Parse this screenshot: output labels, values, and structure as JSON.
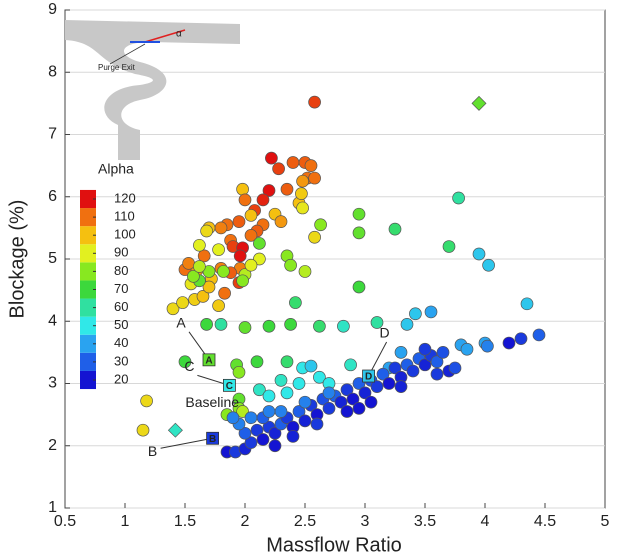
{
  "chart_data": {
    "type": "scatter",
    "xlabel": "Massflow Ratio",
    "ylabel": "Blockage (%)",
    "xlim": [
      0.5,
      5
    ],
    "xticks": [
      0.5,
      1,
      1.5,
      2,
      2.5,
      3,
      3.5,
      4,
      4.5,
      5
    ],
    "ylim": [
      1,
      9
    ],
    "yticks": [
      1,
      2,
      3,
      4,
      5,
      6,
      7,
      8,
      9
    ],
    "grid": true,
    "x": [
      2.22,
      2.28,
      2.4,
      2.5,
      2.52,
      2.58,
      2.48,
      2.35,
      2.2,
      2.15,
      2.08,
      1.98,
      2.0,
      2.25,
      2.3,
      2.15,
      2.1,
      1.95,
      1.85,
      1.8,
      1.88,
      2.05,
      1.9,
      1.98,
      1.96,
      1.96,
      1.88,
      1.8,
      1.66,
      1.5,
      1.6,
      1.72,
      1.83,
      1.95,
      1.53,
      1.7,
      1.62,
      1.68,
      1.78,
      2.05,
      2.45,
      2.47,
      2.58,
      2.48,
      2.55,
      2.58,
      2.12,
      2.0,
      2.05,
      1.4,
      1.48,
      1.58,
      1.65,
      1.78,
      1.55,
      1.7,
      1.62,
      1.7,
      1.82,
      1.57,
      1.62,
      1.98,
      2.12,
      2.35,
      2.5,
      2.38,
      2.63,
      2.95,
      2.95,
      3.25,
      3.7,
      3.78,
      2.95,
      2.42,
      1.8,
      1.68,
      2.0,
      2.2,
      2.38,
      2.62,
      2.82,
      3.1,
      1.5,
      1.93,
      1.95,
      2.1,
      2.35,
      1.95,
      1.85,
      1.95,
      1.18,
      1.15,
      1.98,
      3.95,
      4.03,
      4.35,
      3.42,
      3.55,
      3.35,
      2.48,
      2.55,
      2.62,
      2.88,
      2.7,
      2.3,
      2.35,
      2.45,
      2.12,
      2.2,
      3.8,
      3.85,
      4.0,
      4.02,
      3.3,
      3.2,
      1.85,
      1.92,
      2.0,
      2.05,
      2.0,
      2.1,
      2.15,
      2.2,
      2.25,
      2.3,
      2.35,
      2.4,
      2.45,
      2.5,
      2.55,
      2.6,
      2.65,
      2.7,
      2.75,
      2.8,
      2.85,
      2.9,
      2.95,
      3.0,
      3.05,
      3.1,
      3.15,
      3.2,
      3.25,
      3.3,
      3.35,
      3.4,
      3.45,
      3.5,
      3.55,
      3.6,
      3.65,
      3.7,
      3.5,
      4.2,
      4.3,
      4.45,
      3.05,
      2.85,
      2.25,
      1.95,
      2.05,
      2.3,
      2.4,
      2.6,
      2.95,
      3.3,
      3.6,
      3.75,
      2.15,
      2.5,
      1.9,
      2.7,
      2.2
    ],
    "values": [
      6.62,
      6.45,
      6.55,
      6.55,
      6.3,
      6.3,
      6.25,
      6.12,
      6.1,
      5.95,
      5.78,
      6.12,
      5.95,
      5.72,
      5.6,
      5.55,
      5.45,
      5.6,
      5.55,
      5.5,
      5.3,
      5.38,
      5.2,
      5.18,
      5.05,
      4.85,
      4.78,
      4.85,
      5.05,
      4.83,
      4.82,
      4.68,
      4.45,
      4.62,
      4.93,
      5.5,
      5.22,
      5.45,
      5.15,
      5.7,
      5.9,
      6.05,
      5.35,
      5.82,
      6.5,
      7.52,
      5.0,
      4.75,
      4.9,
      4.2,
      4.3,
      4.35,
      4.4,
      4.25,
      4.6,
      4.55,
      4.65,
      4.8,
      4.8,
      4.72,
      4.88,
      4.65,
      5.25,
      5.05,
      4.8,
      4.9,
      5.55,
      5.72,
      5.42,
      5.48,
      5.2,
      5.98,
      4.55,
      4.3,
      3.95,
      3.95,
      3.9,
      3.92,
      3.95,
      3.92,
      3.92,
      3.98,
      3.35,
      3.3,
      3.18,
      3.35,
      3.35,
      2.75,
      2.5,
      2.6,
      2.72,
      2.25,
      2.55,
      5.08,
      4.9,
      4.28,
      4.12,
      4.15,
      3.95,
      3.25,
      3.28,
      3.1,
      3.3,
      3.0,
      3.05,
      2.85,
      3.0,
      2.9,
      2.8,
      3.62,
      3.55,
      3.65,
      3.6,
      3.5,
      3.25,
      1.9,
      1.9,
      1.95,
      2.05,
      2.2,
      2.25,
      2.1,
      2.3,
      2.2,
      2.35,
      2.45,
      2.3,
      2.55,
      2.4,
      2.65,
      2.5,
      2.75,
      2.6,
      2.8,
      2.7,
      2.9,
      2.75,
      3.0,
      2.85,
      3.05,
      2.95,
      3.15,
      3.0,
      3.25,
      3.1,
      3.3,
      3.2,
      3.4,
      3.3,
      3.45,
      3.35,
      3.5,
      3.2,
      3.55,
      3.65,
      3.72,
      3.78,
      2.7,
      2.55,
      2.0,
      2.35,
      2.45,
      2.55,
      2.15,
      2.35,
      2.6,
      2.95,
      3.15,
      3.25,
      2.45,
      2.7,
      2.45,
      2.85,
      2.55
    ],
    "alpha": [
      120,
      115,
      112,
      112,
      110,
      110,
      105,
      112,
      120,
      118,
      115,
      100,
      110,
      100,
      105,
      110,
      112,
      112,
      110,
      108,
      110,
      110,
      115,
      120,
      122,
      108,
      112,
      108,
      110,
      110,
      105,
      100,
      110,
      115,
      108,
      100,
      90,
      95,
      90,
      100,
      100,
      98,
      95,
      92,
      110,
      115,
      90,
      85,
      90,
      95,
      95,
      97,
      100,
      98,
      92,
      100,
      75,
      80,
      80,
      80,
      85,
      80,
      75,
      80,
      85,
      80,
      80,
      75,
      75,
      65,
      65,
      60,
      70,
      65,
      60,
      70,
      75,
      70,
      70,
      65,
      55,
      60,
      70,
      75,
      80,
      70,
      65,
      75,
      80,
      80,
      95,
      95,
      85,
      45,
      45,
      45,
      45,
      40,
      45,
      50,
      45,
      50,
      55,
      50,
      55,
      50,
      50,
      55,
      50,
      40,
      40,
      40,
      35,
      40,
      40,
      20,
      25,
      22,
      25,
      30,
      25,
      20,
      25,
      22,
      30,
      25,
      20,
      30,
      22,
      25,
      20,
      28,
      25,
      30,
      22,
      25,
      20,
      30,
      22,
      28,
      25,
      30,
      20,
      25,
      22,
      30,
      25,
      30,
      22,
      25,
      30,
      28,
      22,
      25,
      20,
      25,
      30,
      20,
      20,
      20,
      35,
      35,
      35,
      22,
      25,
      20,
      22,
      25,
      28,
      30,
      35,
      35,
      35,
      35
    ],
    "colorbar": {
      "title": "Alpha",
      "ticks": [
        20,
        30,
        40,
        50,
        60,
        70,
        80,
        90,
        100,
        110,
        120
      ]
    },
    "colormap": [
      {
        "value": 20,
        "color": "#1414d2"
      },
      {
        "value": 30,
        "color": "#1f5fe8"
      },
      {
        "value": 40,
        "color": "#2aa3f0"
      },
      {
        "value": 50,
        "color": "#30e8e8"
      },
      {
        "value": 60,
        "color": "#30e0a0"
      },
      {
        "value": 70,
        "color": "#3cd83c"
      },
      {
        "value": 80,
        "color": "#88e820"
      },
      {
        "value": 90,
        "color": "#e2f020"
      },
      {
        "value": 100,
        "color": "#f5c010"
      },
      {
        "value": 110,
        "color": "#f07010"
      },
      {
        "value": 120,
        "color": "#e01010"
      }
    ],
    "annotations": [
      {
        "label": "A",
        "x": 1.7,
        "y": 3.38,
        "alpha": 75
      },
      {
        "label": "B",
        "x": 1.73,
        "y": 2.12,
        "alpha": 25
      },
      {
        "label": "C",
        "x": 1.87,
        "y": 2.97,
        "alpha": 50
      },
      {
        "label": "D",
        "x": 3.03,
        "y": 3.12,
        "alpha": 45
      }
    ],
    "diamonds": [
      {
        "x": 1.42,
        "y": 2.25,
        "alpha": 55,
        "label": "Baseline"
      },
      {
        "x": 3.95,
        "y": 7.5,
        "alpha": 75
      }
    ],
    "inset": {
      "label": "Purge Exit",
      "angle_label": "α"
    }
  }
}
